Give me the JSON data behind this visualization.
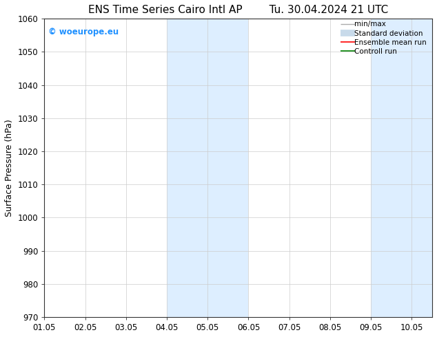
{
  "title_left": "ENS Time Series Cairo Intl AP",
  "title_right": "Tu. 30.04.2024 21 UTC",
  "ylabel": "Surface Pressure (hPa)",
  "ylim": [
    970,
    1060
  ],
  "yticks": [
    970,
    980,
    990,
    1000,
    1010,
    1020,
    1030,
    1040,
    1050,
    1060
  ],
  "xtick_labels": [
    "01.05",
    "02.05",
    "03.05",
    "04.05",
    "05.05",
    "06.05",
    "07.05",
    "08.05",
    "09.05",
    "10.05"
  ],
  "xtick_positions": [
    0,
    1,
    2,
    3,
    4,
    5,
    6,
    7,
    8,
    9
  ],
  "xlim": [
    0,
    9.5
  ],
  "shaded_bands": [
    {
      "x_start": 3.0,
      "x_end": 4.0,
      "color": "#ddeeff"
    },
    {
      "x_start": 4.0,
      "x_end": 5.0,
      "color": "#ddeeff"
    },
    {
      "x_start": 8.0,
      "x_end": 9.0,
      "color": "#ddeeff"
    },
    {
      "x_start": 9.0,
      "x_end": 9.5,
      "color": "#ddeeff"
    }
  ],
  "watermark_text": "© woeurope.eu",
  "watermark_color": "#1E90FF",
  "legend_items": [
    {
      "label": "min/max",
      "color": "#aaaaaa",
      "lw": 1.0,
      "ls": "-"
    },
    {
      "label": "Standard deviation",
      "color": "#c8daea",
      "lw": 7,
      "ls": "-"
    },
    {
      "label": "Ensemble mean run",
      "color": "#ff0000",
      "lw": 1.2,
      "ls": "-"
    },
    {
      "label": "Controll run",
      "color": "#008000",
      "lw": 1.2,
      "ls": "-"
    }
  ],
  "bg_color": "#ffffff",
  "plot_bg_color": "#ffffff",
  "grid_color": "#cccccc",
  "title_fontsize": 11,
  "axis_label_fontsize": 9,
  "tick_fontsize": 8.5
}
